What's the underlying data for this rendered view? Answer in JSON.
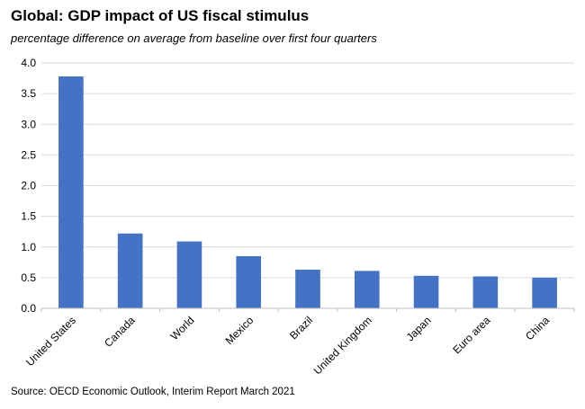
{
  "chart_data": {
    "type": "bar",
    "title": "Global: GDP impact of US fiscal stimulus",
    "subtitle": "percentage difference on average from baseline over first four quarters",
    "source": "Source: OECD Economic Outlook, Interim Report March 2021",
    "categories": [
      "United States",
      "Canada",
      "World",
      "Mexico",
      "Brazil",
      "United Kingdom",
      "Japan",
      "Euro area",
      "China"
    ],
    "values": [
      3.78,
      1.22,
      1.09,
      0.85,
      0.63,
      0.61,
      0.53,
      0.52,
      0.5
    ],
    "ylim": [
      0,
      4.0
    ],
    "yticks": [
      "0.0",
      "0.5",
      "1.0",
      "1.5",
      "2.0",
      "2.5",
      "3.0",
      "3.5",
      "4.0"
    ],
    "ytick_values": [
      0,
      0.5,
      1.0,
      1.5,
      2.0,
      2.5,
      3.0,
      3.5,
      4.0
    ],
    "grid": true,
    "legend": "none",
    "bar_color": "#4472C4",
    "grid_color": "#d9d9d9",
    "axis_color": "#bfbfbf"
  }
}
